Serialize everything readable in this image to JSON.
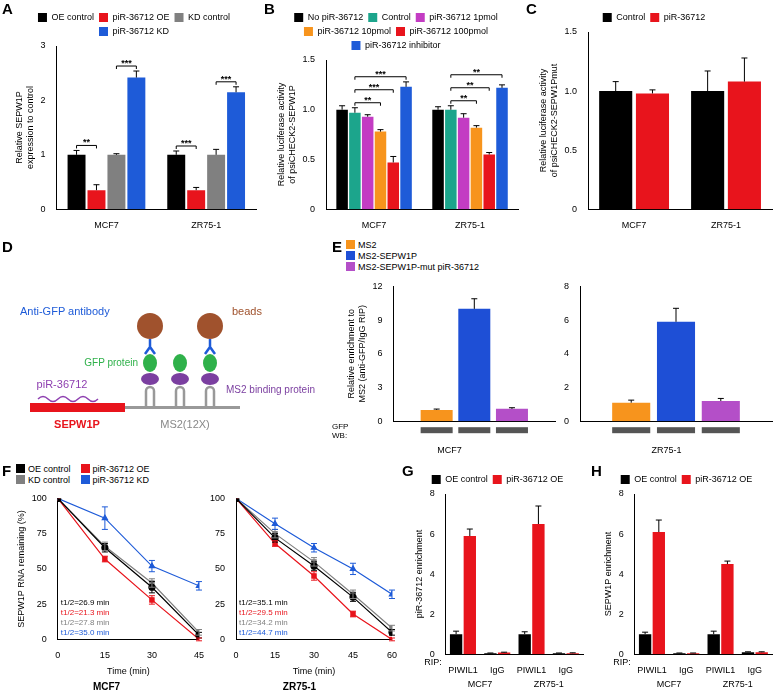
{
  "chart_data": [
    {
      "panel_label": "A",
      "type": "bar",
      "ylabel": [
        "Relative SEPW1P",
        "expression to control"
      ],
      "categories": [
        "MCF7",
        "ZR75-1"
      ],
      "series": [
        {
          "name": "OE control",
          "color": "#000000",
          "values": [
            1,
            1
          ],
          "errors": [
            0.08,
            0.07
          ]
        },
        {
          "name": "piR-36712 OE",
          "color": "#e8141c",
          "values": [
            0.35,
            0.35
          ],
          "errors": [
            0.1,
            0.05
          ]
        },
        {
          "name": "KD control",
          "color": "#808080",
          "values": [
            1,
            1
          ],
          "errors": [
            0.02,
            0.1
          ]
        },
        {
          "name": "piR-36712 KD",
          "color": "#1e5bd8",
          "values": [
            2.42,
            2.15
          ],
          "errors": [
            0.12,
            0.1
          ]
        }
      ],
      "ylim": [
        0,
        3
      ],
      "yticks": [
        0,
        1,
        2,
        3
      ],
      "grid": false,
      "legend": "top",
      "annotations": [
        {
          "category": 0,
          "from": 0,
          "to": 1,
          "text": "**"
        },
        {
          "category": 0,
          "from": 2,
          "to": 3,
          "text": "***"
        },
        {
          "category": 1,
          "from": 0,
          "to": 1,
          "text": "***"
        },
        {
          "category": 1,
          "from": 2,
          "to": 3,
          "text": "***"
        }
      ]
    },
    {
      "panel_label": "B",
      "type": "bar",
      "ylabel": [
        "Relative luciferase activity",
        "of psiCHECK2-SEPW1P"
      ],
      "categories": [
        "MCF7",
        "ZR75-1"
      ],
      "series": [
        {
          "name": "No piR-36712",
          "color": "#000000",
          "values": [
            1,
            1
          ],
          "errors": [
            0.04,
            0.03
          ]
        },
        {
          "name": "Control",
          "color": "#1ca58c",
          "values": [
            0.97,
            1.0
          ],
          "errors": [
            0.05,
            0.04
          ]
        },
        {
          "name": "piR-36712 1pmol",
          "color": "#c33cc3",
          "values": [
            0.93,
            0.92
          ],
          "errors": [
            0.02,
            0.04
          ]
        },
        {
          "name": "piR-36712 10pmol",
          "color": "#f7941d",
          "values": [
            0.78,
            0.82
          ],
          "errors": [
            0.02,
            0.02
          ]
        },
        {
          "name": "piR-36712 100pmol",
          "color": "#e8141c",
          "values": [
            0.47,
            0.55
          ],
          "errors": [
            0.06,
            0.02
          ]
        },
        {
          "name": "piR-36712 inhibitor",
          "color": "#1e5bd8",
          "values": [
            1.23,
            1.22
          ],
          "errors": [
            0.05,
            0.03
          ]
        }
      ],
      "ylim": [
        0,
        1.5
      ],
      "yticks": [
        0,
        0.5,
        {
          "value": 1,
          "label": "1.0"
        },
        1.5
      ],
      "grid": false,
      "legend": "top",
      "annotations": [
        {
          "category": 0,
          "from": 1,
          "to": 3,
          "text": "**"
        },
        {
          "category": 0,
          "from": 1,
          "to": 4,
          "text": "***"
        },
        {
          "category": 0,
          "from": 1,
          "to": 5,
          "text": "***"
        },
        {
          "category": 1,
          "from": 1,
          "to": 3,
          "text": "**"
        },
        {
          "category": 1,
          "from": 1,
          "to": 4,
          "text": "**"
        },
        {
          "category": 1,
          "from": 1,
          "to": 5,
          "text": "**"
        }
      ]
    },
    {
      "panel_label": "C",
      "type": "bar",
      "ylabel": [
        "Relative luciferase activity",
        "of psiCHECK2-SEPW1Pmut"
      ],
      "categories": [
        "MCF7",
        "ZR75-1"
      ],
      "series": [
        {
          "name": "Control",
          "color": "#000000",
          "values": [
            1,
            1
          ],
          "errors": [
            0.08,
            0.17
          ]
        },
        {
          "name": "piR-36712",
          "color": "#e8141c",
          "values": [
            0.98,
            1.08
          ],
          "errors": [
            0.03,
            0.2
          ]
        }
      ],
      "ylim": [
        0,
        1.5
      ],
      "yticks": [
        0,
        0.5,
        {
          "value": 1,
          "label": "1.0"
        },
        1.5
      ],
      "grid": false,
      "legend": "top"
    },
    {
      "panel_label": "E",
      "type": "bar",
      "ylabel": [
        "Relative enrichment to",
        "MS2 (anti-GFP/IgG RIP)"
      ],
      "series": [
        {
          "name": "MS2",
          "color": "#f7941d"
        },
        {
          "name": "MS2-SEPW1P",
          "color": "#1e4fd6"
        },
        {
          "name": "MS2-SEPW1P-mut piR-36712",
          "color": "#b44fc8"
        }
      ],
      "panels": [
        {
          "category": "MCF7",
          "values": [
            1,
            10,
            1.1
          ],
          "errors": [
            0.08,
            0.9,
            0.1
          ],
          "ylim": [
            0,
            12
          ],
          "yticks": [
            0,
            3,
            6,
            9,
            12
          ]
        },
        {
          "category": "ZR75-1",
          "values": [
            1.1,
            5.9,
            1.2
          ],
          "errors": [
            0.15,
            0.8,
            0.15
          ],
          "ylim": [
            0,
            8
          ],
          "yticks": [
            0,
            2,
            4,
            6,
            8
          ]
        }
      ],
      "blot_label": [
        "GFP",
        "WB:"
      ],
      "grid": false,
      "legend": "top"
    },
    {
      "panel_label": "F",
      "type": "line",
      "ylabel": "SEPW1P RNA remaining (%)",
      "xlabel": "Time (min)",
      "series": [
        {
          "name": "OE control",
          "color": "#000000",
          "marker": "circle"
        },
        {
          "name": "piR-36712 OE",
          "color": "#e8141c",
          "marker": "square"
        },
        {
          "name": "KD control",
          "color": "#808080",
          "marker": "square"
        },
        {
          "name": "piR-36712 KD",
          "color": "#1e5bd8",
          "marker": "triangle"
        }
      ],
      "panels": [
        {
          "title": "MCF7",
          "x": [
            0,
            15,
            30,
            45
          ],
          "xlim": [
            0,
            45
          ],
          "xticks": [
            0,
            15,
            30,
            45
          ],
          "ylim": [
            0,
            100
          ],
          "yticks": [
            0,
            25,
            50,
            75,
            100
          ],
          "values": [
            [
              100,
              65,
              37,
              3
            ],
            [
              100,
              57,
              28,
              0
            ],
            [
              100,
              66,
              40,
              5
            ],
            [
              100,
              86,
              52,
              38
            ]
          ],
          "errors": [
            [
              0,
              3,
              4,
              2
            ],
            [
              0,
              2,
              3,
              1
            ],
            [
              0,
              3,
              3,
              2
            ],
            [
              0,
              8,
              4,
              3
            ]
          ],
          "half_life_labels": [
            "t1/2=26.9 min",
            "t1/2=21.3 min",
            "t1/2=27.8 min",
            "t1/2=35.0 min"
          ]
        },
        {
          "title": "ZR75-1",
          "x": [
            0,
            15,
            30,
            45,
            60
          ],
          "xlim": [
            0,
            60
          ],
          "xticks": [
            0,
            15,
            30,
            45,
            60
          ],
          "ylim": [
            0,
            100
          ],
          "yticks": [
            0,
            25,
            50,
            75,
            100
          ],
          "values": [
            [
              100,
              72,
              52,
              30,
              5
            ],
            [
              100,
              68,
              45,
              18,
              0
            ],
            [
              100,
              75,
              55,
              32,
              8
            ],
            [
              100,
              82,
              65,
              50,
              32
            ]
          ],
          "errors": [
            [
              0,
              3,
              3,
              3,
              2
            ],
            [
              0,
              2,
              3,
              2,
              1
            ],
            [
              0,
              3,
              3,
              3,
              2
            ],
            [
              0,
              4,
              3,
              4,
              3
            ]
          ],
          "half_life_labels": [
            "t1/2=35.1 min",
            "t1/2=29.5 min",
            "t1/2=34.2 min",
            "t1/2=44.7 min"
          ]
        }
      ],
      "grid": false,
      "legend": "top"
    },
    {
      "panel_label": "G",
      "type": "bar",
      "ylabel": "piR-36712 enrichment",
      "xlabel": "RIP:",
      "categories": [
        "PIWIL1",
        "IgG",
        "PIWIL1",
        "IgG"
      ],
      "groups": [
        "MCF7",
        "ZR75-1"
      ],
      "series": [
        {
          "name": "OE control",
          "color": "#000000",
          "values": [
            1,
            0.05,
            1,
            0.05
          ],
          "errors": [
            0.15,
            0.01,
            0.12,
            0.01
          ]
        },
        {
          "name": "piR-36712 OE",
          "color": "#e8141c",
          "values": [
            5.9,
            0.08,
            6.5,
            0.05
          ],
          "errors": [
            0.35,
            0.02,
            0.9,
            0.02
          ]
        }
      ],
      "ylim": [
        0,
        8
      ],
      "yticks": [
        0,
        2,
        4,
        6,
        8
      ],
      "grid": false,
      "legend": "top"
    },
    {
      "panel_label": "H",
      "type": "bar",
      "ylabel": "SEPW1P enrichment",
      "xlabel": "RIP:",
      "categories": [
        "PIWIL1",
        "IgG",
        "PIWIL1",
        "IgG"
      ],
      "groups": [
        "MCF7",
        "ZR75-1"
      ],
      "series": [
        {
          "name": "OE control",
          "color": "#000000",
          "values": [
            1,
            0.05,
            1,
            0.1
          ],
          "errors": [
            0.1,
            0.01,
            0.15,
            0.02
          ]
        },
        {
          "name": "piR-36712 OE",
          "color": "#e8141c",
          "values": [
            6.1,
            0.05,
            4.5,
            0.1
          ],
          "errors": [
            0.6,
            0.01,
            0.15,
            0.02
          ]
        }
      ],
      "ylim": [
        0,
        8
      ],
      "yticks": [
        0,
        2,
        4,
        6,
        8
      ],
      "grid": false,
      "legend": "top"
    }
  ],
  "diagram": {
    "panel_label": "D",
    "labels": {
      "antibody": "Anti-GFP antibody",
      "beads": "beads",
      "gfp": "GFP protein",
      "pirna": "piR-36712",
      "rna": "SEPW1P",
      "ms2": "MS2(12X)",
      "binding": "MS2 binding protein"
    }
  }
}
